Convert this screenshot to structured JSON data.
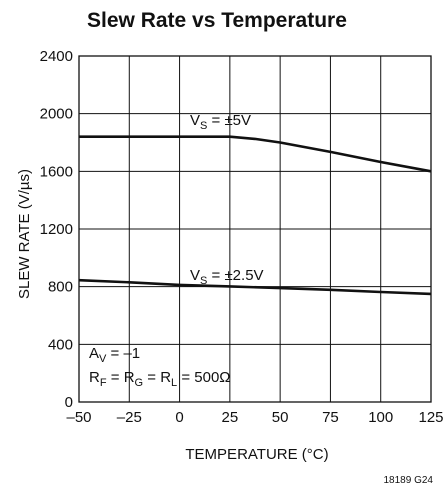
{
  "chart_data": {
    "type": "line",
    "title": "Slew Rate vs Temperature",
    "xlabel": "TEMPERATURE (°C)",
    "ylabel": "SLEW RATE (V/µs)",
    "xlim": [
      -50,
      125
    ],
    "ylim": [
      0,
      2400
    ],
    "x_ticks": [
      -50,
      -25,
      0,
      25,
      50,
      75,
      100,
      125
    ],
    "x_tick_labels": [
      "–50",
      "–25",
      "0",
      "25",
      "50",
      "75",
      "100",
      "125"
    ],
    "y_ticks": [
      0,
      400,
      800,
      1200,
      1600,
      2000,
      2400
    ],
    "y_tick_labels": [
      "0",
      "400",
      "800",
      "1200",
      "1600",
      "2000",
      "2400"
    ],
    "grid": true,
    "series": [
      {
        "name": "VS = ±5V",
        "label": {
          "main": "V",
          "sub": "S",
          "rest": " = ±5V"
        },
        "x": [
          -50,
          -25,
          0,
          25,
          37.5,
          50,
          75,
          100,
          125
        ],
        "y": [
          1840,
          1840,
          1840,
          1840,
          1825,
          1800,
          1735,
          1665,
          1600
        ]
      },
      {
        "name": "VS = ±2.5V",
        "label": {
          "main": "V",
          "sub": "S",
          "rest": " = ±2.5V"
        },
        "x": [
          -50,
          -25,
          0,
          25,
          50,
          75,
          100,
          125
        ],
        "y": [
          845,
          830,
          812,
          802,
          790,
          778,
          763,
          750
        ]
      }
    ],
    "annotations": {
      "av": {
        "main": "A",
        "sub": "V",
        "rest": " = –1"
      },
      "rf": {
        "parts": [
          {
            "main": "R",
            "sub": "F",
            "rest": " = "
          },
          {
            "main": "R",
            "sub": "G",
            "rest": " = "
          },
          {
            "main": "R",
            "sub": "L",
            "rest": " = 500Ω"
          }
        ]
      }
    },
    "colors": {
      "line": "#111111",
      "grid": "#111111",
      "background": "#ffffff"
    }
  },
  "figure_id": "18189 G24"
}
